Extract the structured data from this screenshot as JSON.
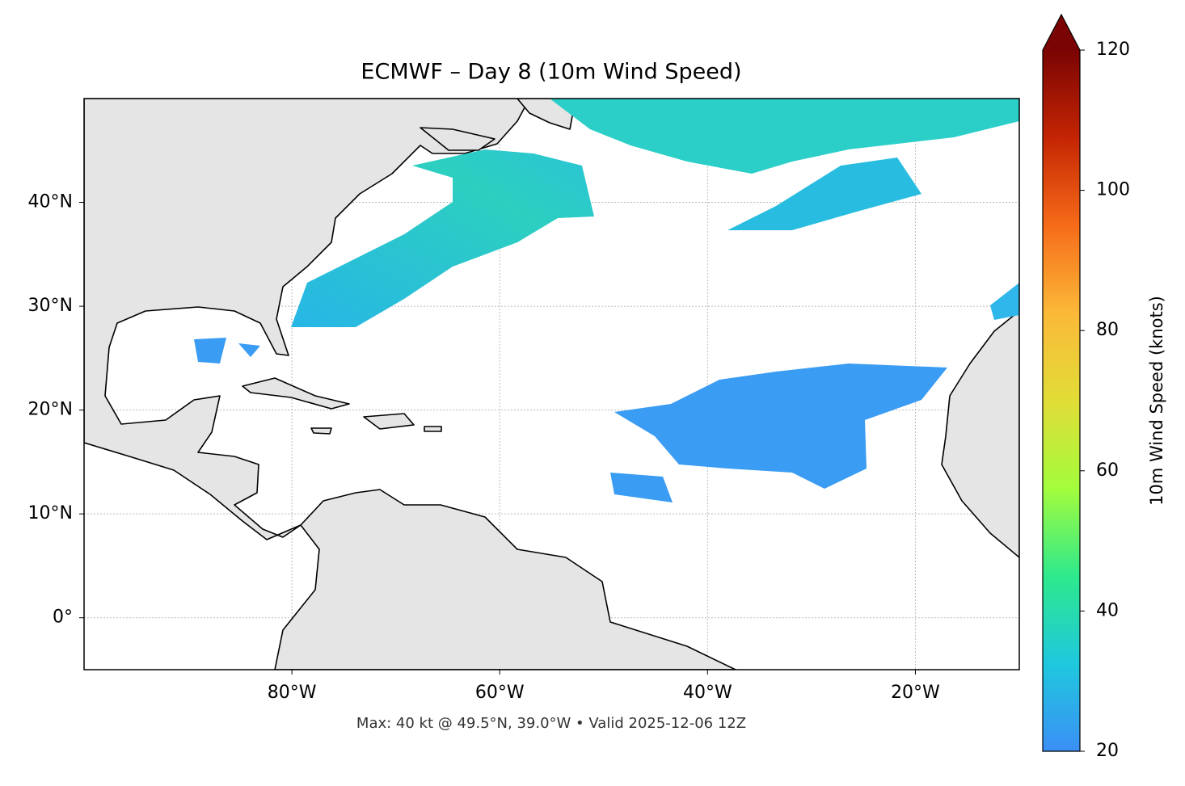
{
  "chart_data": {
    "type": "map",
    "title": "ECMWF – Day 8 (10m Wind Speed)",
    "xlim": [
      -100,
      -10
    ],
    "ylim": [
      -5,
      50
    ],
    "xticks": [
      {
        "value": -80,
        "label": "80°W"
      },
      {
        "value": -60,
        "label": "60°W"
      },
      {
        "value": -40,
        "label": "40°W"
      },
      {
        "value": -20,
        "label": "20°W"
      }
    ],
    "yticks": [
      {
        "value": 0,
        "label": "0°"
      },
      {
        "value": 10,
        "label": "10°N"
      },
      {
        "value": 20,
        "label": "20°N"
      },
      {
        "value": 30,
        "label": "30°N"
      },
      {
        "value": 40,
        "label": "40°N"
      }
    ],
    "grid": true,
    "colorbar": {
      "label": "10m Wind Speed (knots)",
      "lim": [
        20,
        120
      ],
      "ticks": [
        20,
        40,
        60,
        80,
        100,
        120
      ],
      "extend": "max",
      "colors": [
        "#3b8ff5",
        "#1fc8de",
        "#2ee98c",
        "#a4fc3c",
        "#e1dd37",
        "#fbb938",
        "#f66b19",
        "#c42503",
        "#7a0403"
      ]
    },
    "footnote": "Max: 40 kt @ 49.5°N, 39.0°W • Valid 2025-12-06 12Z"
  }
}
